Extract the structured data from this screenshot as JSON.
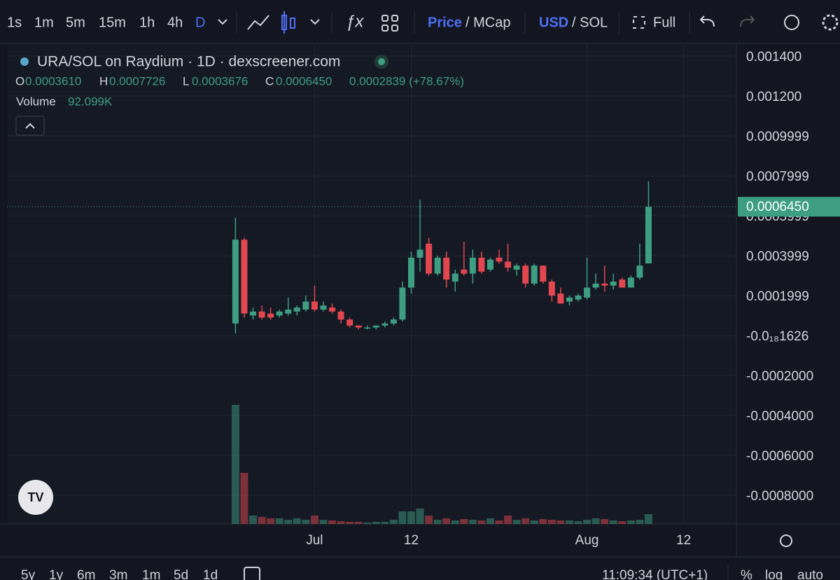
{
  "toolbar": {
    "intervals": [
      "1s",
      "1m",
      "5m",
      "15m",
      "1h",
      "4h",
      "D"
    ],
    "price": "Price",
    "mcap": "/ MCap",
    "usd": "USD",
    "sol": "/ SOL",
    "full": "Full"
  },
  "legend": {
    "title": "URA/SOL on Raydium · 1D · dexscreener.com",
    "o_key": "O",
    "o": "0.0003610",
    "h_key": "H",
    "h": "0.0007726",
    "l_key": "L",
    "l": "0.0003676",
    "c_key": "C",
    "c": "0.0006450",
    "change": "0.0002839 (+78.67%)",
    "volume_key": "Volume",
    "volume": "92.099K",
    "last_price": "0.0006450"
  },
  "bottom_bar": {
    "ranges": [
      "5y",
      "1y",
      "6m",
      "3m",
      "1m",
      "5d",
      "1d"
    ],
    "clock": "11:09:34 (UTC+1)",
    "percent": "%",
    "log": "log",
    "auto": "auto"
  },
  "chart_data": {
    "type": "candlestick",
    "up_color": "#3d9e82",
    "down_color": "#e2474f",
    "grid": true,
    "x": [
      "06-22",
      "06-23",
      "06-24",
      "06-25",
      "06-26",
      "06-27",
      "06-28",
      "06-29",
      "06-30",
      "07-01",
      "07-02",
      "07-03",
      "07-04",
      "07-05",
      "07-06",
      "07-07",
      "07-08",
      "07-09",
      "07-10",
      "07-11",
      "07-12",
      "07-13",
      "07-14",
      "07-15",
      "07-16",
      "07-17",
      "07-18",
      "07-19",
      "07-20",
      "07-21",
      "07-22",
      "07-23",
      "07-24",
      "07-25",
      "07-26",
      "07-27",
      "07-28",
      "07-29",
      "07-30",
      "07-31",
      "08-01",
      "08-02",
      "08-03",
      "08-04",
      "08-05",
      "08-06",
      "08-07",
      "08-08"
    ],
    "open": [
      6e-05,
      0.00048,
      0.0001,
      0.00012,
      0.00011,
      0.0001,
      0.00011,
      0.00012,
      0.00013,
      0.00017,
      0.00013,
      0.00014,
      0.00012,
      8e-05,
      5e-05,
      4e-05,
      4e-05,
      5e-05,
      6e-05,
      8e-05,
      0.00024,
      0.00039,
      0.00046,
      0.00031,
      0.00039,
      0.00027,
      0.00033,
      0.00031,
      0.00039,
      0.00033,
      0.00039,
      0.00037,
      0.00033,
      0.00035,
      0.00026,
      0.00035,
      0.00027,
      0.00021,
      0.00017,
      0.00018,
      0.00019,
      0.00024,
      0.00026,
      0.00025,
      0.00028,
      0.00024,
      0.00029,
      0.000361
    ],
    "high": [
      0.00059,
      0.00049,
      0.00014,
      0.00015,
      0.00014,
      0.00013,
      0.00019,
      0.00015,
      0.0002,
      0.00025,
      0.00017,
      0.00016,
      0.00013,
      9e-05,
      5e-05,
      5e-05,
      5e-05,
      7e-05,
      9e-05,
      0.00027,
      0.00042,
      0.00068,
      0.00049,
      0.0004,
      0.00042,
      0.00033,
      0.00047,
      0.00043,
      0.00042,
      0.00039,
      0.00043,
      0.00046,
      0.00036,
      0.00036,
      0.00036,
      0.00035,
      0.00028,
      0.00024,
      0.0002,
      0.00021,
      0.00039,
      0.00031,
      0.00035,
      0.00031,
      0.00029,
      0.0003,
      0.00046,
      0.0007726
    ],
    "low": [
      1e-05,
      9e-05,
      8e-05,
      8e-05,
      8e-05,
      9e-05,
      0.0001,
      0.0001,
      0.00012,
      0.00012,
      0.00012,
      0.00011,
      6e-05,
      4e-05,
      3e-05,
      3e-05,
      3e-05,
      4e-05,
      5e-05,
      7e-05,
      0.00021,
      0.00032,
      0.0003,
      0.0003,
      0.00024,
      0.00022,
      0.0003,
      0.00026,
      0.00031,
      0.00032,
      0.00036,
      0.00032,
      0.0003,
      0.00024,
      0.00025,
      0.00026,
      0.00017,
      0.00016,
      0.00015,
      0.00017,
      0.00018,
      0.00023,
      0.00022,
      0.00023,
      0.00024,
      0.00024,
      0.00028,
      0.0003676
    ],
    "close": [
      0.00048,
      0.00011,
      0.00012,
      9e-05,
      9e-05,
      0.00012,
      0.00013,
      0.00014,
      0.00017,
      0.00013,
      0.00015,
      0.00012,
      8e-05,
      5e-05,
      4e-05,
      4e-05,
      5e-05,
      6e-05,
      8e-05,
      0.00024,
      0.00039,
      0.00043,
      0.00031,
      0.00039,
      0.00028,
      0.00031,
      0.00031,
      0.00039,
      0.00032,
      0.00038,
      0.00037,
      0.00034,
      0.00035,
      0.00026,
      0.00035,
      0.00027,
      0.0002,
      0.00016,
      0.00019,
      0.0002,
      0.00024,
      0.00026,
      0.00025,
      0.00027,
      0.00024,
      0.00029,
      0.00035,
      0.000645
    ],
    "volume": [
      1118000,
      480000,
      79000,
      66000,
      53000,
      53000,
      39000,
      53000,
      39000,
      79000,
      39000,
      33000,
      26000,
      20000,
      20000,
      13000,
      20000,
      20000,
      39000,
      118000,
      118000,
      145000,
      79000,
      39000,
      53000,
      33000,
      46000,
      39000,
      33000,
      53000,
      33000,
      79000,
      39000,
      53000,
      33000,
      46000,
      39000,
      33000,
      33000,
      26000,
      39000,
      53000,
      46000,
      33000,
      26000,
      33000,
      39000,
      92099
    ],
    "ylim": [
      -0.000944,
      0.001456
    ],
    "yticks": [
      {
        "value": 0.0014,
        "label": "0.001400"
      },
      {
        "value": 0.0012,
        "label": "0.001200"
      },
      {
        "value": 0.0009999,
        "label": "0.0009999"
      },
      {
        "value": 0.0007999,
        "label": "0.0007999"
      },
      {
        "value": 0.0005999,
        "label": "0.0005999"
      },
      {
        "value": 0.0003999,
        "label": "0.0003999"
      },
      {
        "value": 0.0001999,
        "label": "0.0001999"
      },
      {
        "value": -1.626e-19,
        "label": "-0.0₁₈1626"
      },
      {
        "value": -0.0002,
        "label": "-0.0002000"
      },
      {
        "value": -0.0004,
        "label": "-0.0004000"
      },
      {
        "value": -0.0006,
        "label": "-0.0006000"
      },
      {
        "value": -0.0008,
        "label": "-0.0008000"
      }
    ],
    "xlim": [
      "05-27",
      "08-18"
    ],
    "xticks": [
      {
        "value": "07-01",
        "label": "Jul"
      },
      {
        "value": "07-12",
        "label": "12"
      },
      {
        "value": "08-01",
        "label": "Aug"
      },
      {
        "value": "08-12",
        "label": "12"
      }
    ]
  }
}
